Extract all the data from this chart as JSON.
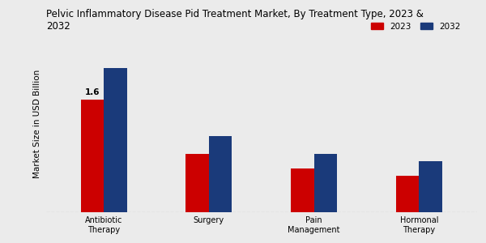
{
  "title": "Pelvic Inflammatory Disease Pid Treatment Market, By Treatment Type, 2023 &\n2032",
  "ylabel": "Market Size in USD Billion",
  "categories": [
    "Antibiotic\nTherapy",
    "Surgery",
    "Pain\nManagement",
    "Hormonal\nTherapy"
  ],
  "values_2023": [
    1.6,
    0.82,
    0.62,
    0.52
  ],
  "values_2032": [
    2.05,
    1.08,
    0.82,
    0.72
  ],
  "color_2023": "#cc0000",
  "color_2032": "#1a3a7a",
  "annotation_text": "1.6",
  "legend_labels": [
    "2023",
    "2032"
  ],
  "background_color": "#ebebeb",
  "bar_width": 0.22,
  "title_fontsize": 8.5,
  "label_fontsize": 7.5,
  "tick_fontsize": 7.0,
  "ylim": [
    0,
    2.5
  ]
}
